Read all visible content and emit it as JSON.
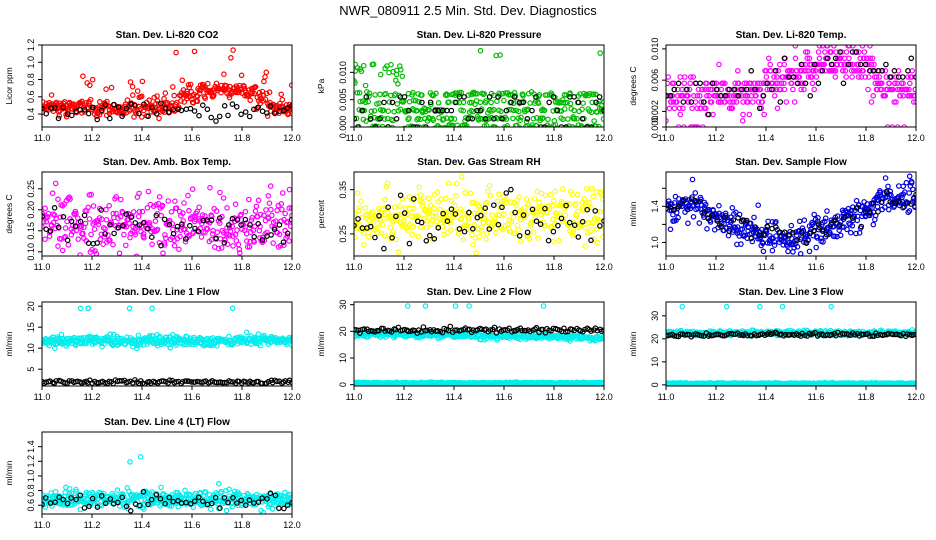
{
  "figure": {
    "title": "NWR_080911  2.5 Min. Std. Dev. Diagnostics"
  },
  "chart_data": [
    {
      "type": "scatter",
      "title": "Stan. Dev. Li-820 CO2",
      "xlabel": "",
      "ylabel": "Licor ppm",
      "xlim": [
        11.0,
        12.0
      ],
      "ylim": [
        0.25,
        1.2
      ],
      "x_ticks": [
        "11.0",
        "11.2",
        "11.4",
        "11.6",
        "11.8",
        "12.0"
      ],
      "y_ticks": [
        0.4,
        0.6,
        0.8,
        1.0,
        1.2
      ],
      "y_tick_labels": [
        "0.4",
        "0.6",
        "0.8",
        "1.0",
        "1.2"
      ],
      "series": [
        {
          "name": "red",
          "color": "#ff0000",
          "count": 380,
          "pattern": "co2red"
        },
        {
          "name": "black",
          "color": "#000000",
          "count": 60,
          "pattern": "co2black"
        }
      ]
    },
    {
      "type": "scatter",
      "title": "Stan. Dev. Li-820 Pressure",
      "xlabel": "",
      "ylabel": "kPa",
      "xlim": [
        11.0,
        12.0
      ],
      "ylim": [
        0.0,
        0.015
      ],
      "x_ticks": [
        "11.0",
        "11.2",
        "11.4",
        "11.6",
        "11.8",
        "12.0"
      ],
      "y_ticks": [
        0.0,
        0.005,
        0.01
      ],
      "y_tick_labels": [
        "0.000",
        "0.005",
        "0.010"
      ],
      "series": [
        {
          "name": "green",
          "color": "#00bb00",
          "count": 420,
          "pattern": "pressgreen"
        },
        {
          "name": "black",
          "color": "#000000",
          "count": 60,
          "pattern": "pressblack"
        }
      ]
    },
    {
      "type": "scatter",
      "title": "Stan. Dev. Li-820 Temp.",
      "xlabel": "",
      "ylabel": "degrees C",
      "xlim": [
        11.0,
        12.0
      ],
      "ylim": [
        0.0,
        0.0105
      ],
      "x_ticks": [
        "11.0",
        "11.2",
        "11.4",
        "11.6",
        "11.8",
        "12.0"
      ],
      "y_ticks": [
        0.0,
        0.002,
        0.006,
        0.01
      ],
      "y_tick_labels": [
        "0.000",
        "0.002",
        "0.006",
        "0.010"
      ],
      "series": [
        {
          "name": "magenta",
          "color": "#ff00ff",
          "count": 420,
          "pattern": "tempmag"
        },
        {
          "name": "black",
          "color": "#000000",
          "count": 60,
          "pattern": "tempblack"
        }
      ]
    },
    {
      "type": "scatter",
      "title": "Stan. Dev. Amb. Box Temp.",
      "xlabel": "",
      "ylabel": "degrees C",
      "xlim": [
        11.0,
        12.0
      ],
      "ylim": [
        0.09,
        0.29
      ],
      "x_ticks": [
        "11.0",
        "11.2",
        "11.4",
        "11.6",
        "11.8",
        "12.0"
      ],
      "y_ticks": [
        0.1,
        0.15,
        0.2,
        0.25
      ],
      "y_tick_labels": [
        "0.10",
        "0.15",
        "0.20",
        "0.25"
      ],
      "series": [
        {
          "name": "magenta",
          "color": "#ff00ff",
          "count": 380,
          "pattern": "boxmag"
        },
        {
          "name": "black",
          "color": "#000000",
          "count": 60,
          "pattern": "boxblack"
        }
      ]
    },
    {
      "type": "scatter",
      "title": "Stan. Dev. Gas Stream RH",
      "xlabel": "",
      "ylabel": "percent",
      "xlim": [
        11.0,
        12.0
      ],
      "ylim": [
        0.2,
        0.39
      ],
      "x_ticks": [
        "11.0",
        "11.2",
        "11.4",
        "11.6",
        "11.8",
        "12.0"
      ],
      "y_ticks": [
        0.25,
        0.35
      ],
      "y_tick_labels": [
        "0.25",
        "0.35"
      ],
      "series": [
        {
          "name": "yellow",
          "color": "#ffff00",
          "count": 380,
          "pattern": "rhyellow"
        },
        {
          "name": "black",
          "color": "#000000",
          "count": 60,
          "pattern": "rhblack"
        }
      ]
    },
    {
      "type": "scatter",
      "title": "Stan. Dev. Sample Flow",
      "xlabel": "",
      "ylabel": "ml/min",
      "xlim": [
        11.0,
        12.0
      ],
      "ylim": [
        0.85,
        1.78
      ],
      "x_ticks": [
        "11.0",
        "11.2",
        "11.4",
        "11.6",
        "11.8",
        "12.0"
      ],
      "y_ticks": [
        1.0,
        1.2,
        1.4,
        1.6
      ],
      "y_tick_labels": [
        "1.0",
        "",
        "1.4",
        ""
      ],
      "series": [
        {
          "name": "blue",
          "color": "#0000dd",
          "count": 420,
          "pattern": "flowblue"
        },
        {
          "name": "black",
          "color": "#000000",
          "count": 60,
          "pattern": "flowblack"
        }
      ]
    },
    {
      "type": "scatter",
      "title": "Stan. Dev. Line 1 Flow",
      "xlabel": "",
      "ylabel": "ml/min",
      "xlim": [
        11.0,
        12.0
      ],
      "ylim": [
        1.0,
        21.0
      ],
      "x_ticks": [
        "11.0",
        "11.2",
        "11.4",
        "11.6",
        "11.8",
        "12.0"
      ],
      "y_ticks": [
        5,
        10,
        15,
        20
      ],
      "y_tick_labels": [
        "5",
        "10",
        "15",
        "20"
      ],
      "series": [
        {
          "name": "cyan",
          "color": "#00eeee",
          "count": 420,
          "pattern": "line1cyan"
        },
        {
          "name": "black",
          "color": "#000000",
          "count": 120,
          "pattern": "line1black"
        }
      ]
    },
    {
      "type": "scatter",
      "title": "Stan. Dev. Line 2 Flow",
      "xlabel": "",
      "ylabel": "ml/min",
      "xlim": [
        11.0,
        12.0
      ],
      "ylim": [
        -0.5,
        31.0
      ],
      "x_ticks": [
        "11.0",
        "11.2",
        "11.4",
        "11.6",
        "11.8",
        "12.0"
      ],
      "y_ticks": [
        0,
        10,
        20,
        30
      ],
      "y_tick_labels": [
        "0",
        "10",
        "20",
        "30"
      ],
      "series": [
        {
          "name": "cyan",
          "color": "#00eeee",
          "count": 700,
          "pattern": "line2cyan"
        },
        {
          "name": "black",
          "color": "#000000",
          "count": 120,
          "pattern": "line2black"
        }
      ]
    },
    {
      "type": "scatter",
      "title": "Stan. Dev. Line 3 Flow",
      "xlabel": "",
      "ylabel": "ml/min",
      "xlim": [
        11.0,
        12.0
      ],
      "ylim": [
        -0.5,
        36.0
      ],
      "x_ticks": [
        "11.0",
        "11.2",
        "11.4",
        "11.6",
        "11.8",
        "12.0"
      ],
      "y_ticks": [
        0,
        10,
        20,
        30
      ],
      "y_tick_labels": [
        "0",
        "10",
        "20",
        "30"
      ],
      "series": [
        {
          "name": "cyan",
          "color": "#00eeee",
          "count": 700,
          "pattern": "line3cyan"
        },
        {
          "name": "black",
          "color": "#000000",
          "count": 120,
          "pattern": "line3black"
        }
      ]
    },
    {
      "type": "scatter",
      "title": "Stan. Dev. Line 4 (LT) Flow",
      "xlabel": "",
      "ylabel": "ml/min",
      "xlim": [
        11.0,
        12.0
      ],
      "ylim": [
        0.48,
        1.6
      ],
      "x_ticks": [
        "11.0",
        "11.2",
        "11.4",
        "11.6",
        "11.8",
        "12.0"
      ],
      "y_ticks": [
        0.6,
        0.8,
        1.0,
        1.2,
        1.4
      ],
      "y_tick_labels": [
        "0.6",
        "0.8",
        "1.0",
        "1.2",
        "1.4"
      ],
      "series": [
        {
          "name": "cyan",
          "color": "#00eeee",
          "count": 420,
          "pattern": "line4cyan"
        },
        {
          "name": "black",
          "color": "#000000",
          "count": 60,
          "pattern": "line4black"
        }
      ]
    }
  ]
}
